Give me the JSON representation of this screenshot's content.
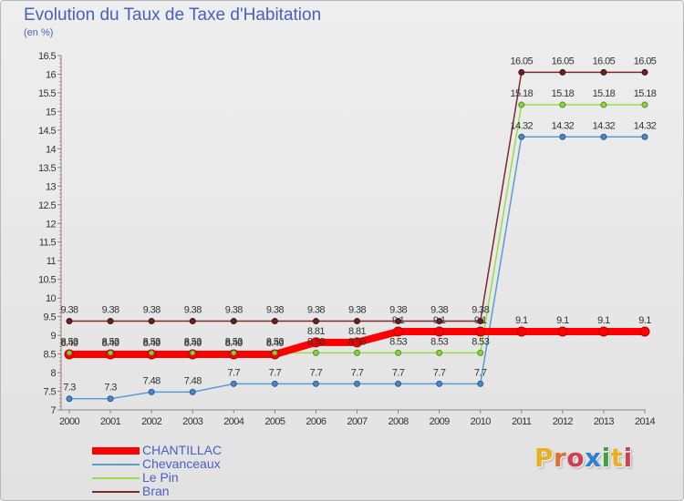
{
  "header": {
    "title": "Evolution du Taux de Taxe d'Habitation",
    "subtitle": "(en %)"
  },
  "logo": {
    "text": "Proxiti",
    "letters": [
      "P",
      "r",
      "o",
      "x",
      "i",
      "t",
      "i"
    ],
    "colors": [
      "#e8b020",
      "#e07030",
      "#d04050",
      "#3080d0",
      "#40a040",
      "#e8b020",
      "#d04050"
    ]
  },
  "chart_data": {
    "type": "line",
    "title": "Evolution du Taux de Taxe d'Habitation",
    "subtitle": "(en %)",
    "xlabel": "",
    "ylabel": "",
    "x": [
      "2000",
      "2001",
      "2002",
      "2003",
      "2004",
      "2005",
      "2006",
      "2007",
      "2008",
      "2009",
      "2010",
      "2011",
      "2012",
      "2013",
      "2014"
    ],
    "ylim": [
      7,
      16.5
    ],
    "yticks": [
      "7",
      "7.5",
      "8",
      "8.5",
      "9",
      "9.5",
      "10",
      "10.5",
      "11",
      "11.5",
      "12",
      "12.5",
      "13",
      "13.5",
      "14",
      "14.5",
      "15",
      "15.5",
      "16",
      "16.5"
    ],
    "grid": false,
    "legend": "bottom-left",
    "series": [
      {
        "name": "CHANTILLAC",
        "color": "#ff0000",
        "values": [
          8.49,
          8.49,
          8.49,
          8.49,
          8.49,
          8.49,
          8.81,
          8.81,
          9.1,
          9.1,
          9.1,
          9.1,
          9.1,
          9.1,
          9.1
        ],
        "labels": [
          "8.49",
          "8.49",
          "8.49",
          "8.49",
          "8.49",
          "8.49",
          "8.81",
          "8.81",
          "9.1",
          "9.1",
          "9.1",
          "9.1",
          "9.1",
          "9.1",
          "9.1"
        ]
      },
      {
        "name": "Chevanceaux",
        "color": "#5b9bd5",
        "values": [
          7.3,
          7.3,
          7.48,
          7.48,
          7.7,
          7.7,
          7.7,
          7.7,
          7.7,
          7.7,
          7.7,
          14.32,
          14.32,
          14.32,
          14.32
        ],
        "labels": [
          "7.3",
          "7.3",
          "7.48",
          "7.48",
          "7.7",
          "7.7",
          "7.7",
          "7.7",
          "7.7",
          "7.7",
          "7.7",
          "14.32",
          "14.32",
          "14.32",
          "14.32"
        ]
      },
      {
        "name": "Le Pin",
        "color": "#99dd44",
        "values": [
          8.53,
          8.53,
          8.53,
          8.53,
          8.53,
          8.53,
          8.53,
          8.53,
          8.53,
          8.53,
          8.53,
          15.18,
          15.18,
          15.18,
          15.18
        ],
        "labels": [
          "8.53",
          "8.53",
          "8.53",
          "8.53",
          "8.53",
          "8.53",
          "8.53",
          "8.53",
          "8.53",
          "8.53",
          "8.53",
          "15.18",
          "15.18",
          "15.18",
          "15.18"
        ]
      },
      {
        "name": "Bran",
        "color": "#7b2a2a",
        "values": [
          9.38,
          9.38,
          9.38,
          9.38,
          9.38,
          9.38,
          9.38,
          9.38,
          9.38,
          9.38,
          9.38,
          16.05,
          16.05,
          16.05,
          16.05
        ],
        "labels": [
          "9.38",
          "9.38",
          "9.38",
          "9.38",
          "9.38",
          "9.38",
          "9.38",
          "9.38",
          "9.38",
          "9.38",
          "9.38",
          "16.05",
          "16.05",
          "16.05",
          "16.05"
        ]
      }
    ]
  }
}
